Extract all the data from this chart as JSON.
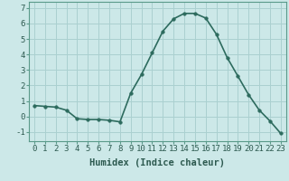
{
  "x": [
    0,
    1,
    2,
    3,
    4,
    5,
    6,
    7,
    8,
    9,
    10,
    11,
    12,
    13,
    14,
    15,
    16,
    17,
    18,
    19,
    20,
    21,
    22,
    23
  ],
  "y": [
    0.7,
    0.65,
    0.6,
    0.4,
    -0.15,
    -0.2,
    -0.2,
    -0.25,
    -0.35,
    1.5,
    2.7,
    4.1,
    5.5,
    6.3,
    6.65,
    6.65,
    6.35,
    5.3,
    3.8,
    2.6,
    1.4,
    0.4,
    -0.3,
    -1.1
  ],
  "line_color": "#2d6b5e",
  "marker": "o",
  "markersize": 2.5,
  "linewidth": 1.2,
  "background_color": "#cce8e8",
  "grid_color": "#aad0d0",
  "xlabel": "Humidex (Indice chaleur)",
  "xlabel_fontsize": 7.5,
  "xlim": [
    -0.5,
    23.5
  ],
  "ylim": [
    -1.6,
    7.4
  ],
  "yticks": [
    -1,
    0,
    1,
    2,
    3,
    4,
    5,
    6,
    7
  ],
  "xtick_labels": [
    "0",
    "1",
    "2",
    "3",
    "4",
    "5",
    "6",
    "7",
    "8",
    "9",
    "10",
    "11",
    "12",
    "13",
    "14",
    "15",
    "16",
    "17",
    "18",
    "19",
    "20",
    "21",
    "22",
    "23"
  ],
  "tick_fontsize": 6.5,
  "spine_color": "#5a9a8a"
}
